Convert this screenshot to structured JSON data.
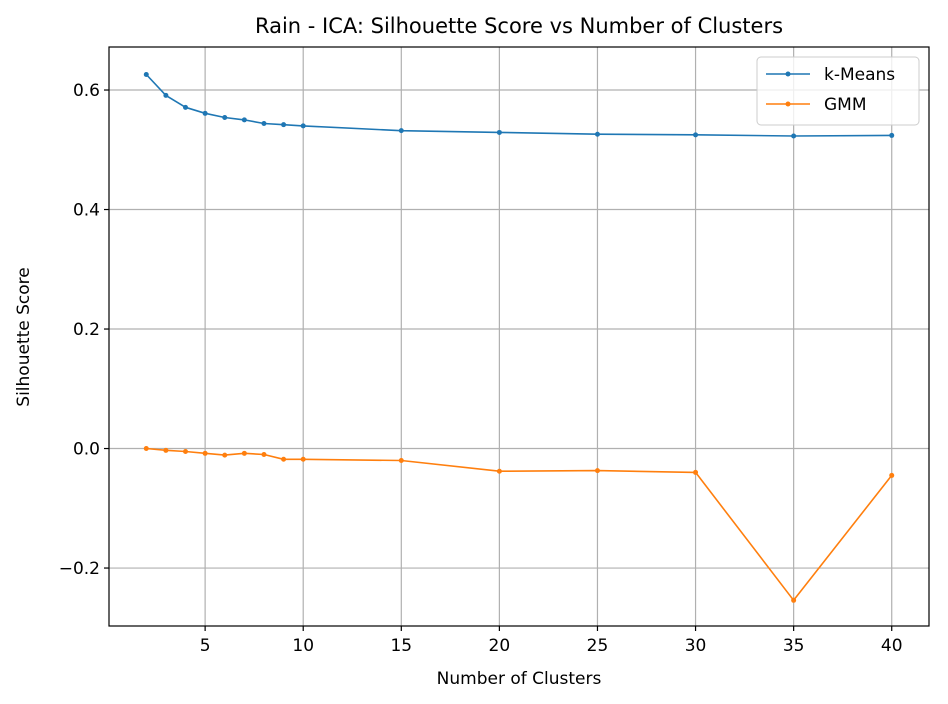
{
  "chart_data": {
    "type": "line",
    "title": "Rain - ICA: Silhouette Score vs Number of Clusters",
    "xlabel": "Number of Clusters",
    "ylabel": "Silhouette Score",
    "x": [
      2,
      3,
      4,
      5,
      6,
      7,
      8,
      9,
      10,
      15,
      20,
      25,
      30,
      35,
      40
    ],
    "xlim": [
      0.1,
      41.9
    ],
    "ylim": [
      -0.297,
      0.672
    ],
    "xticks": [
      5,
      10,
      15,
      20,
      25,
      30,
      35,
      40
    ],
    "xtick_labels": [
      "5",
      "10",
      "15",
      "20",
      "25",
      "30",
      "35",
      "40"
    ],
    "yticks": [
      -0.2,
      0.0,
      0.2,
      0.4,
      0.6
    ],
    "ytick_labels": [
      "−0.2",
      "0.0",
      "0.2",
      "0.4",
      "0.6"
    ],
    "grid": true,
    "legend_position": "top-right",
    "series": [
      {
        "name": "k-Means",
        "color": "#1f77b4",
        "values": [
          0.626,
          0.591,
          0.571,
          0.561,
          0.554,
          0.55,
          0.544,
          0.542,
          0.54,
          0.532,
          0.529,
          0.526,
          0.525,
          0.523,
          0.524
        ]
      },
      {
        "name": "GMM",
        "color": "#ff7f0e",
        "values": [
          0.0,
          -0.003,
          -0.005,
          -0.008,
          -0.011,
          -0.008,
          -0.01,
          -0.018,
          -0.018,
          -0.02,
          -0.038,
          -0.037,
          -0.04,
          -0.254,
          -0.045
        ]
      }
    ]
  }
}
